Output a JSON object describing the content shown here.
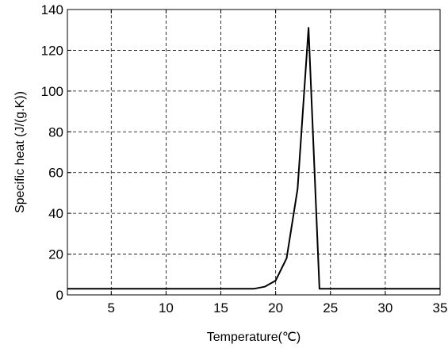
{
  "chart_data": {
    "type": "line",
    "title": "",
    "xlabel": "Temperature(℃)",
    "ylabel": "Specific heat (J/(g.K))",
    "xlim": [
      1,
      35
    ],
    "ylim": [
      0,
      140
    ],
    "x_ticks": [
      5,
      10,
      15,
      20,
      25,
      30,
      35
    ],
    "y_ticks": [
      0,
      20,
      40,
      60,
      80,
      100,
      120,
      140
    ],
    "grid": true,
    "grid_style": "dashed",
    "line_color": "#000000",
    "series": [
      {
        "x": [
          1,
          18,
          19,
          20,
          21,
          22,
          23,
          24,
          35
        ],
        "y": [
          3,
          3,
          4,
          7,
          18,
          52,
          131,
          3,
          3
        ]
      }
    ]
  }
}
